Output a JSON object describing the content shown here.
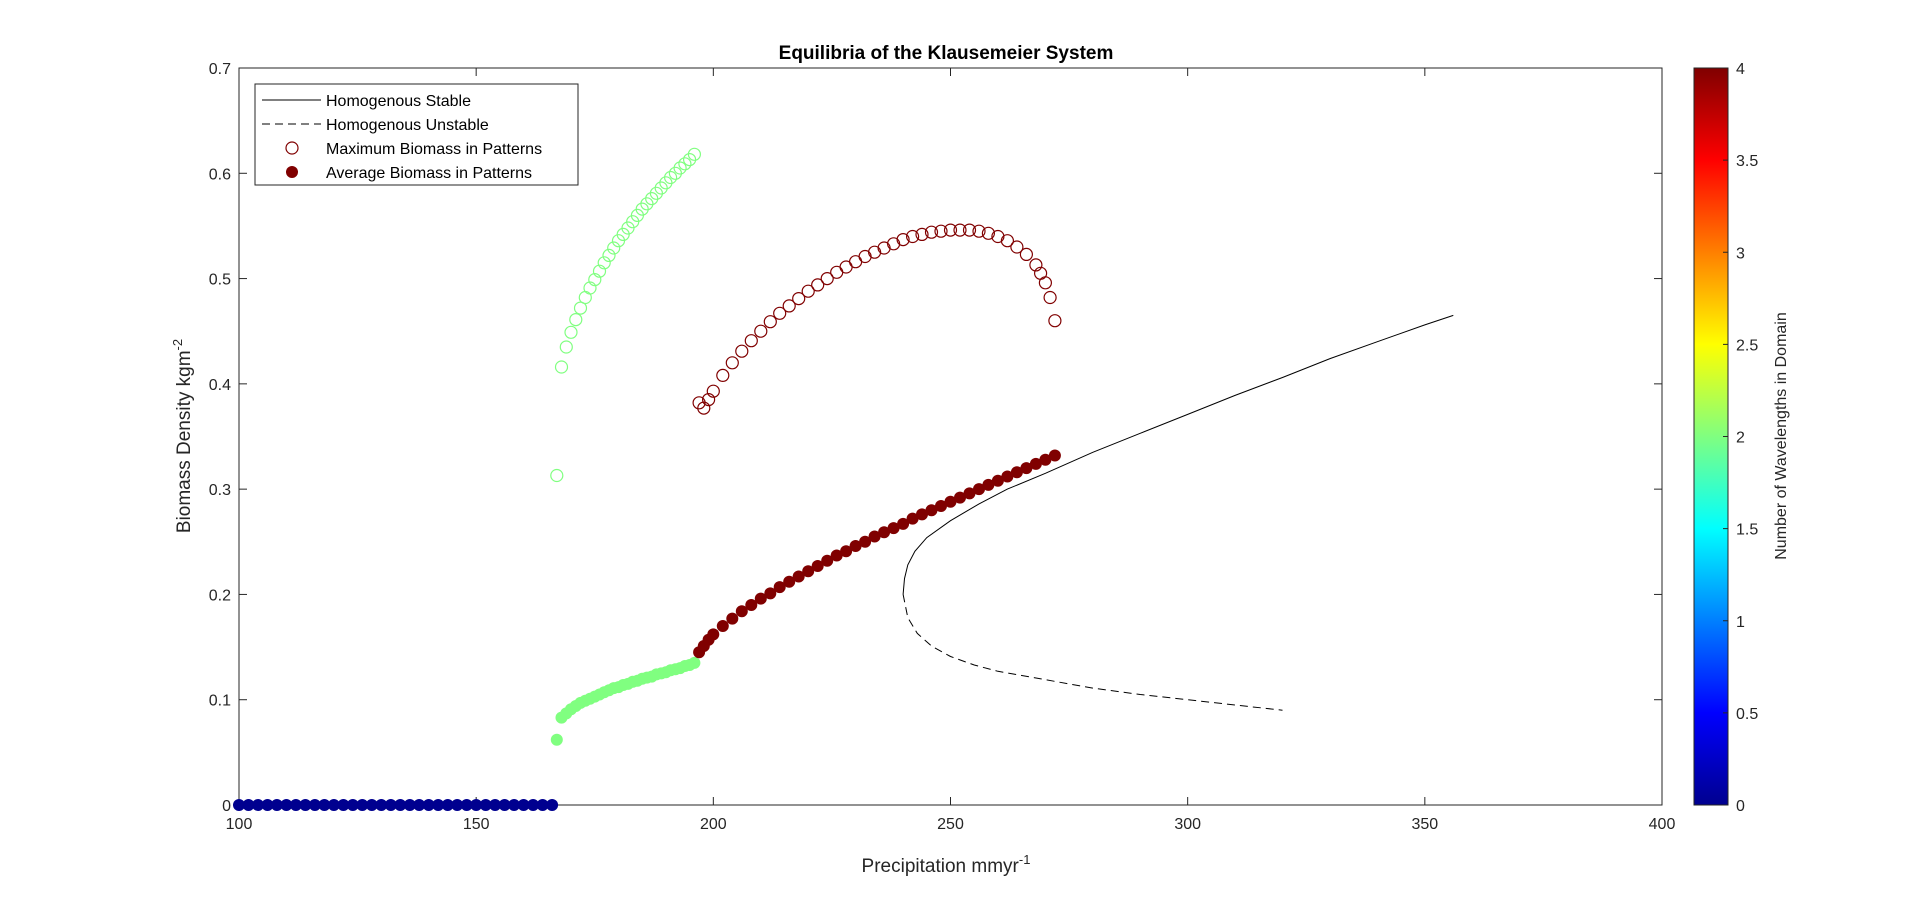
{
  "chart_data": {
    "type": "scatter",
    "title": "Equilibria of the Klausemeier System",
    "xlabel": "Precipitation mmyr",
    "xlabel_sup": "-1",
    "ylabel": "Biomass Density kgm",
    "ylabel_sup": "-2",
    "xlim": [
      100,
      400
    ],
    "ylim": [
      0,
      0.7
    ],
    "xticks": [
      "100",
      "150",
      "200",
      "250",
      "300",
      "350",
      "400"
    ],
    "yticks": [
      "0",
      "0.1",
      "0.2",
      "0.3",
      "0.4",
      "0.5",
      "0.6",
      "0.7"
    ],
    "grid": false,
    "legend_position": "top-left",
    "legend": [
      {
        "label": "Homogenous Stable",
        "style": "solid-line"
      },
      {
        "label": "Homogenous Unstable",
        "style": "dashed-line"
      },
      {
        "label": "Maximum Biomass in Patterns",
        "style": "open-circle"
      },
      {
        "label": "Average Biomass in Patterns",
        "style": "filled-circle"
      }
    ],
    "colorbar": {
      "label": "Number of Wavelengths in Domain",
      "range": [
        0,
        4
      ],
      "ticks": [
        "0",
        "0.5",
        "1",
        "1.5",
        "2",
        "2.5",
        "3",
        "3.5",
        "4"
      ],
      "colormap": "jet"
    },
    "series": [
      {
        "name": "Homogenous Stable",
        "style": "solid-line",
        "color": "#000000",
        "x": [
          240,
          240.3,
          241,
          242.5,
          245,
          250,
          256,
          262,
          270,
          280,
          290,
          300,
          310,
          320,
          330,
          340,
          350,
          356
        ],
        "y": [
          0.2,
          0.215,
          0.228,
          0.241,
          0.254,
          0.27,
          0.286,
          0.3,
          0.315,
          0.335,
          0.353,
          0.371,
          0.389,
          0.406,
          0.424,
          0.44,
          0.456,
          0.465
        ]
      },
      {
        "name": "Homogenous Unstable",
        "style": "dashed-line",
        "color": "#000000",
        "x": [
          240,
          241,
          243,
          246,
          250,
          255,
          260,
          270,
          280,
          290,
          300,
          310,
          320
        ],
        "y": [
          0.2,
          0.178,
          0.163,
          0.151,
          0.141,
          0.133,
          0.127,
          0.119,
          0.111,
          0.105,
          0.1,
          0.095,
          0.09
        ]
      },
      {
        "name": "Maximum Biomass in Patterns",
        "marker": "open-circle",
        "wavelengths": 2,
        "color": "#80ff80",
        "x": [
          167,
          168,
          169,
          170,
          171,
          172,
          173,
          174,
          175,
          176,
          177,
          178,
          179,
          180,
          181,
          182,
          183,
          184,
          185,
          186,
          187,
          188,
          189,
          190,
          191,
          192,
          193,
          194,
          195,
          196
        ],
        "y": [
          0.313,
          0.416,
          0.435,
          0.449,
          0.461,
          0.472,
          0.482,
          0.491,
          0.499,
          0.507,
          0.515,
          0.522,
          0.529,
          0.536,
          0.542,
          0.548,
          0.554,
          0.56,
          0.566,
          0.571,
          0.576,
          0.581,
          0.586,
          0.591,
          0.596,
          0.6,
          0.605,
          0.609,
          0.613,
          0.618
        ]
      },
      {
        "name": "Maximum Biomass in Patterns",
        "marker": "open-circle",
        "wavelengths": 4,
        "color": "#800000",
        "x": [
          197,
          198,
          199,
          200,
          202,
          204,
          206,
          208,
          210,
          212,
          214,
          216,
          218,
          220,
          222,
          224,
          226,
          228,
          230,
          232,
          234,
          236,
          238,
          240,
          242,
          244,
          246,
          248,
          250,
          252,
          254,
          256,
          258,
          260,
          262,
          264,
          266,
          268,
          269,
          270,
          271,
          272
        ],
        "y": [
          0.382,
          0.377,
          0.385,
          0.393,
          0.408,
          0.42,
          0.431,
          0.441,
          0.45,
          0.459,
          0.467,
          0.474,
          0.481,
          0.488,
          0.494,
          0.5,
          0.506,
          0.511,
          0.516,
          0.521,
          0.525,
          0.529,
          0.533,
          0.537,
          0.54,
          0.542,
          0.544,
          0.545,
          0.546,
          0.546,
          0.546,
          0.545,
          0.543,
          0.54,
          0.536,
          0.53,
          0.523,
          0.513,
          0.505,
          0.496,
          0.482,
          0.46
        ]
      },
      {
        "name": "Average Biomass in Patterns",
        "marker": "filled-circle",
        "wavelengths": 0,
        "color": "#00008f",
        "x": [
          100,
          102,
          104,
          106,
          108,
          110,
          112,
          114,
          116,
          118,
          120,
          122,
          124,
          126,
          128,
          130,
          132,
          134,
          136,
          138,
          140,
          142,
          144,
          146,
          148,
          150,
          152,
          154,
          156,
          158,
          160,
          162,
          164,
          166
        ],
        "y": [
          0,
          0,
          0,
          0,
          0,
          0,
          0,
          0,
          0,
          0,
          0,
          0,
          0,
          0,
          0,
          0,
          0,
          0,
          0,
          0,
          0,
          0,
          0,
          0,
          0,
          0,
          0,
          0,
          0,
          0,
          0,
          0,
          0,
          0
        ]
      },
      {
        "name": "Average Biomass in Patterns",
        "marker": "filled-circle",
        "wavelengths": 2,
        "color": "#80ff80",
        "x": [
          167,
          168,
          169,
          170,
          171,
          172,
          173,
          174,
          175,
          176,
          177,
          178,
          179,
          180,
          181,
          182,
          183,
          184,
          185,
          186,
          187,
          188,
          189,
          190,
          191,
          192,
          193,
          194,
          195,
          196
        ],
        "y": [
          0.062,
          0.083,
          0.087,
          0.091,
          0.094,
          0.097,
          0.099,
          0.101,
          0.103,
          0.105,
          0.107,
          0.109,
          0.111,
          0.112,
          0.114,
          0.115,
          0.117,
          0.118,
          0.12,
          0.121,
          0.122,
          0.124,
          0.125,
          0.126,
          0.128,
          0.129,
          0.13,
          0.132,
          0.133,
          0.135
        ]
      },
      {
        "name": "Average Biomass in Patterns",
        "marker": "filled-circle",
        "wavelengths": 4,
        "color": "#800000",
        "x": [
          197,
          198,
          199,
          200,
          202,
          204,
          206,
          208,
          210,
          212,
          214,
          216,
          218,
          220,
          222,
          224,
          226,
          228,
          230,
          232,
          234,
          236,
          238,
          240,
          242,
          244,
          246,
          248,
          250,
          252,
          254,
          256,
          258,
          260,
          262,
          264,
          266,
          268,
          270,
          272
        ],
        "y": [
          0.145,
          0.151,
          0.157,
          0.162,
          0.17,
          0.177,
          0.184,
          0.19,
          0.196,
          0.201,
          0.207,
          0.212,
          0.217,
          0.222,
          0.227,
          0.232,
          0.237,
          0.241,
          0.246,
          0.25,
          0.255,
          0.259,
          0.263,
          0.267,
          0.272,
          0.276,
          0.28,
          0.284,
          0.288,
          0.292,
          0.296,
          0.3,
          0.304,
          0.308,
          0.312,
          0.316,
          0.32,
          0.324,
          0.328,
          0.332
        ]
      }
    ]
  }
}
